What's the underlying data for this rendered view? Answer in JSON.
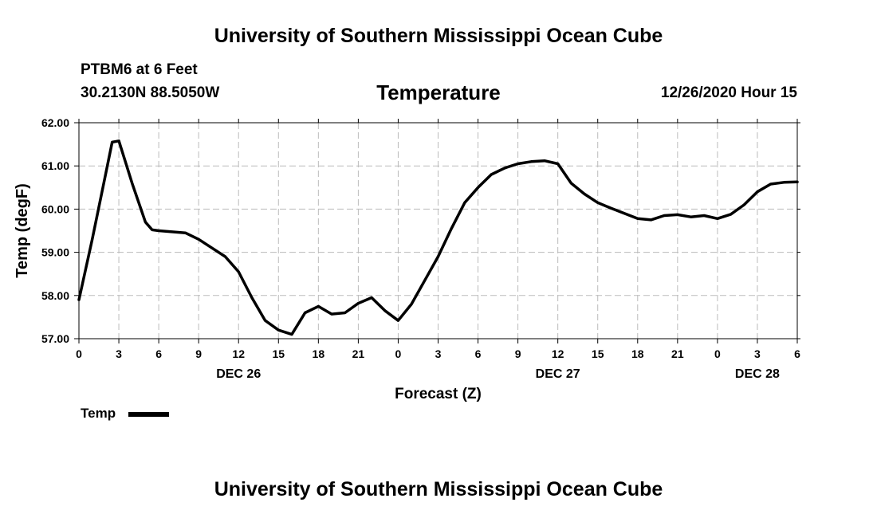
{
  "header": {
    "title": "University of Southern Mississippi Ocean Cube",
    "station": "PTBM6 at 6 Feet",
    "coordinates": "30.2130N 88.5050W",
    "chart_title": "Temperature",
    "datetime": "12/26/2020 Hour 15"
  },
  "footer": {
    "title": "University of Southern Mississippi Ocean Cube"
  },
  "legend": {
    "label": "Temp",
    "color": "#000000"
  },
  "chart_data": {
    "type": "line",
    "title": "Temperature",
    "xlabel": "Forecast (Z)",
    "ylabel": "Temp (degF)",
    "xlim": [
      0,
      54
    ],
    "ylim": [
      57.0,
      62.0
    ],
    "grid": true,
    "legend_position": "bottom-left",
    "x_ticks": [
      0,
      3,
      6,
      9,
      12,
      15,
      18,
      21,
      24,
      27,
      30,
      33,
      36,
      39,
      42,
      45,
      48,
      51,
      54
    ],
    "x_tick_labels": [
      "0",
      "3",
      "6",
      "9",
      "12",
      "15",
      "18",
      "21",
      "0",
      "3",
      "6",
      "9",
      "12",
      "15",
      "18",
      "21",
      "0",
      "3",
      "6"
    ],
    "y_ticks": [
      57.0,
      58.0,
      59.0,
      60.0,
      61.0,
      62.0
    ],
    "y_tick_labels": [
      "57.00",
      "58.00",
      "59.00",
      "60.00",
      "61.00",
      "62.00"
    ],
    "date_labels": [
      {
        "x": 12,
        "label": "DEC 26"
      },
      {
        "x": 36,
        "label": "DEC 27"
      },
      {
        "x": 51,
        "label": "DEC 28"
      }
    ],
    "series": [
      {
        "name": "Temp",
        "color": "#000000",
        "x": [
          0,
          1,
          2,
          2.5,
          3,
          4,
          5,
          5.5,
          6,
          8,
          9,
          10,
          11,
          12,
          13,
          14,
          15,
          16,
          17,
          18,
          19,
          20,
          21,
          22,
          23,
          24,
          25,
          26,
          27,
          28,
          29,
          30,
          31,
          32,
          33,
          34,
          35,
          36,
          37,
          38,
          39,
          40,
          41,
          42,
          43,
          44,
          45,
          46,
          47,
          48,
          49,
          50,
          51,
          52,
          53,
          54
        ],
        "values": [
          57.9,
          59.3,
          60.8,
          61.55,
          61.58,
          60.6,
          59.7,
          59.52,
          59.5,
          59.45,
          59.3,
          59.1,
          58.9,
          58.55,
          57.95,
          57.42,
          57.2,
          57.1,
          57.6,
          57.75,
          57.57,
          57.6,
          57.82,
          57.95,
          57.65,
          57.42,
          57.8,
          58.35,
          58.9,
          59.55,
          60.15,
          60.5,
          60.8,
          60.95,
          61.05,
          61.1,
          61.12,
          61.05,
          60.6,
          60.35,
          60.15,
          60.02,
          59.9,
          59.78,
          59.75,
          59.85,
          59.87,
          59.82,
          59.85,
          59.78,
          59.88,
          60.1,
          60.4,
          60.58,
          60.62,
          60.63
        ]
      }
    ]
  }
}
